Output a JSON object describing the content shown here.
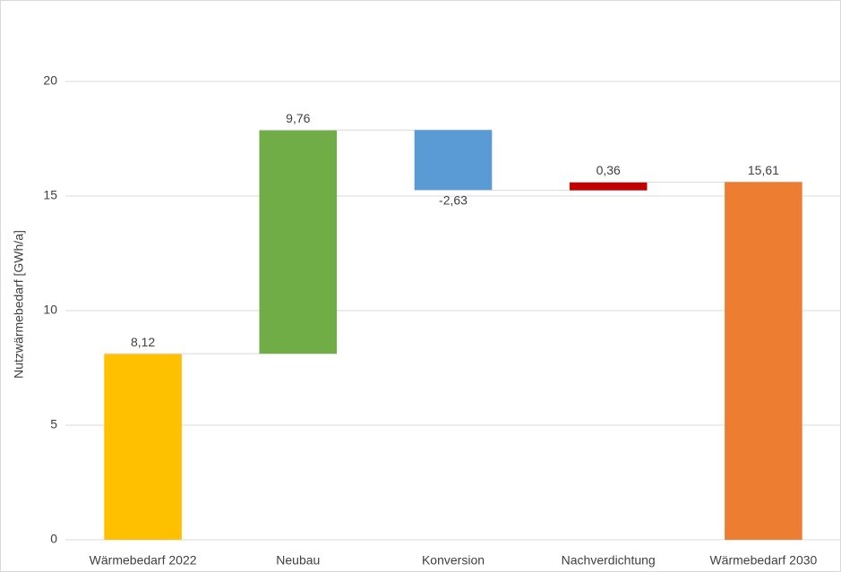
{
  "chart_data": {
    "type": "waterfall",
    "y_label": "Nutzwärmebedarf [GWh/a]",
    "categories": [
      "Wärmebedarf 2022",
      "Neubau",
      "Konversion",
      "Nachverdichtung",
      "Wärmebedarf 2030"
    ],
    "measure": [
      "absolute",
      "relative",
      "relative",
      "relative",
      "total"
    ],
    "values": [
      8.12,
      9.76,
      -2.63,
      0.36,
      15.61
    ],
    "value_labels": [
      "8,12",
      "9,76",
      "-2,63",
      "0,36",
      "15,61"
    ],
    "colors": [
      "#ffc000",
      "#70ad47",
      "#5b9bd5",
      "#c00000",
      "#ed7d31"
    ],
    "ylim": [
      0,
      20
    ],
    "yticks": [
      0,
      5,
      10,
      15,
      20
    ],
    "grid": true
  }
}
